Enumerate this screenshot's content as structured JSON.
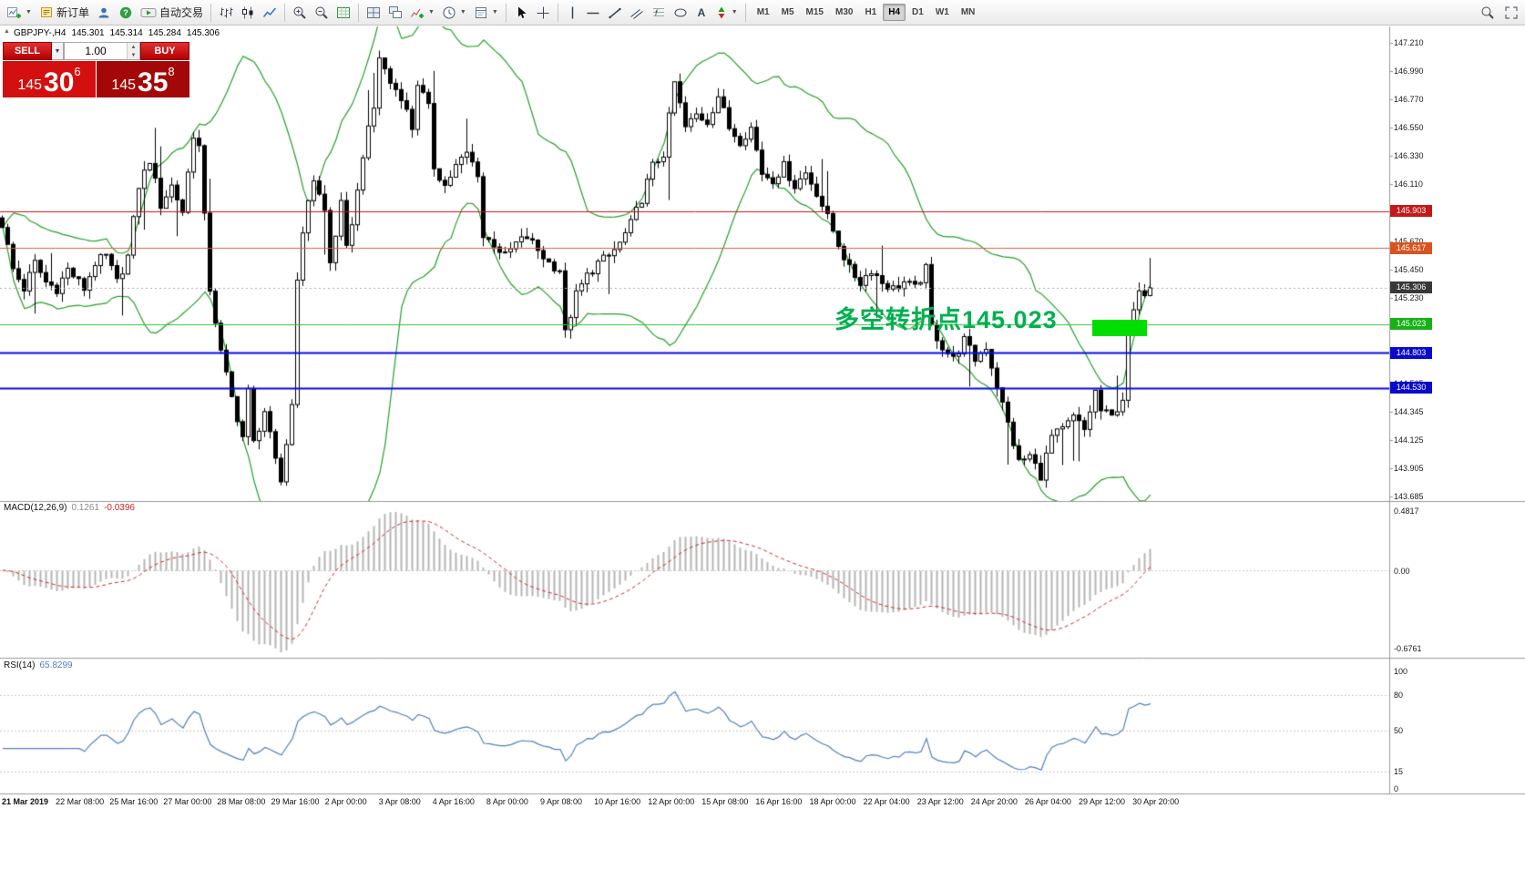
{
  "toolbar": {
    "new_order_label": "新订单",
    "autotrading_label": "自动交易",
    "timeframes": [
      "M1",
      "M5",
      "M15",
      "M30",
      "H1",
      "H4",
      "D1",
      "W1",
      "MN"
    ],
    "active_timeframe": "H4"
  },
  "symbol_bar": {
    "symbol": "GBPJPY-,H4",
    "open": "145.301",
    "high": "145.314",
    "low": "145.284",
    "close": "145.306"
  },
  "trade_panel": {
    "sell_label": "SELL",
    "buy_label": "BUY",
    "volume": "1.00",
    "sell_price": {
      "base": "145",
      "big": "30",
      "sup": "6"
    },
    "buy_price": {
      "base": "145",
      "big": "35",
      "sup": "8"
    }
  },
  "annotation": {
    "text": "多空转折点145.023",
    "color": "#00b050"
  },
  "chart_data": {
    "type": "candlestick",
    "symbol": "GBPJPY",
    "timeframe": "H4",
    "last_price": 145.306,
    "price_axis": {
      "min": 143.685,
      "max": 147.21,
      "ticks": [
        "147.210",
        "146.990",
        "146.770",
        "146.550",
        "146.330",
        "146.110",
        "145.670",
        "145.450",
        "145.230",
        "144.565",
        "144.345",
        "144.125",
        "143.905",
        "143.685"
      ]
    },
    "levels": [
      {
        "price": 145.903,
        "label": "145.903",
        "line_color": "#cc1111",
        "badge_color": "#c51818",
        "width": 1,
        "dash": []
      },
      {
        "price": 145.617,
        "label": "145.617",
        "line_color": "#e2603e",
        "badge_color": "#d9531e",
        "width": 1,
        "dash": []
      },
      {
        "price": 145.306,
        "label": "145.306",
        "line_color": "#aaaaaa",
        "badge_color": "#383838",
        "width": 1,
        "dash": [
          2,
          3
        ],
        "current": true
      },
      {
        "price": 145.023,
        "label": "145.023",
        "line_color": "#35c035",
        "badge_color": "#17b117",
        "width": 1,
        "dash": []
      },
      {
        "price": 144.803,
        "label": "144.803",
        "line_color": "#0a0ae6",
        "badge_color": "#0a0acc",
        "width": 2,
        "dash": []
      },
      {
        "price": 144.53,
        "label": "144.530",
        "line_color": "#0a0ae6",
        "badge_color": "#0a0acc",
        "width": 2,
        "dash": []
      }
    ],
    "bollinger": {
      "period": 20,
      "deviation": 2,
      "color": "#23a127"
    },
    "candle_up_color": "#ffffff",
    "candle_down_color": "#000000",
    "price_path": [
      [
        0,
        145.8
      ],
      [
        2,
        145.45
      ],
      [
        4,
        145.3
      ],
      [
        6,
        145.5
      ],
      [
        8,
        145.35
      ],
      [
        10,
        145.3
      ],
      [
        12,
        145.45
      ],
      [
        15,
        145.3
      ],
      [
        17,
        145.5
      ],
      [
        19,
        145.55
      ],
      [
        21,
        145.35
      ],
      [
        23,
        145.55
      ],
      [
        25,
        146.1
      ],
      [
        27,
        146.3
      ],
      [
        29,
        145.95
      ],
      [
        31,
        146.1
      ],
      [
        33,
        145.9
      ],
      [
        35,
        146.5
      ],
      [
        36,
        146.4
      ],
      [
        38,
        145.3
      ],
      [
        40,
        144.8
      ],
      [
        42,
        144.45
      ],
      [
        44,
        144.15
      ],
      [
        45,
        144.5
      ],
      [
        46,
        144.1
      ],
      [
        48,
        144.35
      ],
      [
        50,
        143.95
      ],
      [
        51,
        143.8
      ],
      [
        53,
        144.4
      ],
      [
        54,
        145.4
      ],
      [
        56,
        146.0
      ],
      [
        57,
        146.15
      ],
      [
        59,
        145.9
      ],
      [
        60,
        145.5
      ],
      [
        62,
        145.95
      ],
      [
        63,
        145.6
      ],
      [
        65,
        146.05
      ],
      [
        66,
        146.35
      ],
      [
        68,
        146.7
      ],
      [
        69,
        147.1
      ],
      [
        71,
        146.9
      ],
      [
        73,
        146.8
      ],
      [
        75,
        146.55
      ],
      [
        76,
        146.9
      ],
      [
        78,
        146.7
      ],
      [
        79,
        146.25
      ],
      [
        81,
        146.1
      ],
      [
        83,
        146.25
      ],
      [
        85,
        146.35
      ],
      [
        87,
        146.2
      ],
      [
        88,
        145.7
      ],
      [
        90,
        145.65
      ],
      [
        92,
        145.55
      ],
      [
        94,
        145.65
      ],
      [
        96,
        145.7
      ],
      [
        98,
        145.6
      ],
      [
        100,
        145.5
      ],
      [
        102,
        145.45
      ],
      [
        103,
        144.95
      ],
      [
        105,
        145.25
      ],
      [
        107,
        145.4
      ],
      [
        109,
        145.5
      ],
      [
        111,
        145.55
      ],
      [
        113,
        145.65
      ],
      [
        115,
        145.8
      ],
      [
        117,
        146.0
      ],
      [
        119,
        146.25
      ],
      [
        121,
        146.35
      ],
      [
        123,
        146.9
      ],
      [
        125,
        146.55
      ],
      [
        127,
        146.65
      ],
      [
        129,
        146.6
      ],
      [
        131,
        146.8
      ],
      [
        133,
        146.55
      ],
      [
        135,
        146.45
      ],
      [
        137,
        146.55
      ],
      [
        139,
        146.2
      ],
      [
        141,
        146.15
      ],
      [
        143,
        146.25
      ],
      [
        145,
        146.1
      ],
      [
        147,
        146.2
      ],
      [
        149,
        146.05
      ],
      [
        151,
        145.85
      ],
      [
        153,
        145.65
      ],
      [
        155,
        145.45
      ],
      [
        157,
        145.35
      ],
      [
        159,
        145.45
      ],
      [
        161,
        145.35
      ],
      [
        163,
        145.3
      ],
      [
        165,
        145.35
      ],
      [
        167,
        145.3
      ],
      [
        169,
        145.45
      ],
      [
        170,
        145.0
      ],
      [
        172,
        144.85
      ],
      [
        174,
        144.75
      ],
      [
        176,
        144.9
      ],
      [
        178,
        144.75
      ],
      [
        180,
        144.85
      ],
      [
        182,
        144.55
      ],
      [
        184,
        144.25
      ],
      [
        186,
        143.95
      ],
      [
        188,
        144.0
      ],
      [
        190,
        143.85
      ],
      [
        192,
        144.15
      ],
      [
        194,
        144.2
      ],
      [
        196,
        144.3
      ],
      [
        198,
        144.2
      ],
      [
        200,
        144.5
      ],
      [
        201,
        144.35
      ],
      [
        203,
        144.3
      ],
      [
        205,
        144.45
      ],
      [
        206,
        145.0
      ],
      [
        208,
        145.25
      ],
      [
        210,
        145.31
      ]
    ],
    "macd": {
      "label": "MACD(12,26,9)",
      "value1": "0.1261",
      "value2": "-0.0396",
      "scale": [
        "0.4817",
        "0.00",
        "-0.6761"
      ],
      "hist_color": "#b5b5b5",
      "signal_color": "#d42a2a"
    },
    "rsi": {
      "label": "RSI(14)",
      "value_text": "65.8299",
      "scale": [
        "100",
        "80",
        "50",
        "15",
        "0"
      ],
      "level_lines": [
        80,
        50,
        15
      ],
      "color": "#4f81bd"
    },
    "highlight_box": {
      "color": "#00dd00",
      "near_price": 145.04
    },
    "time_labels": [
      "21 Mar 2019",
      "22 Mar 08:00",
      "25 Mar 16:00",
      "27 Mar 00:00",
      "28 Mar 08:00",
      "29 Mar 16:00",
      "2 Apr 00:00",
      "3 Apr 08:00",
      "4 Apr 16:00",
      "8 Apr 00:00",
      "9 Apr 08:00",
      "10 Apr 16:00",
      "12 Apr 00:00",
      "15 Apr 08:00",
      "16 Apr 16:00",
      "18 Apr 00:00",
      "22 Apr 04:00",
      "23 Apr 12:00",
      "24 Apr 20:00",
      "26 Apr 04:00",
      "29 Apr 12:00",
      "30 Apr 20:00"
    ]
  }
}
